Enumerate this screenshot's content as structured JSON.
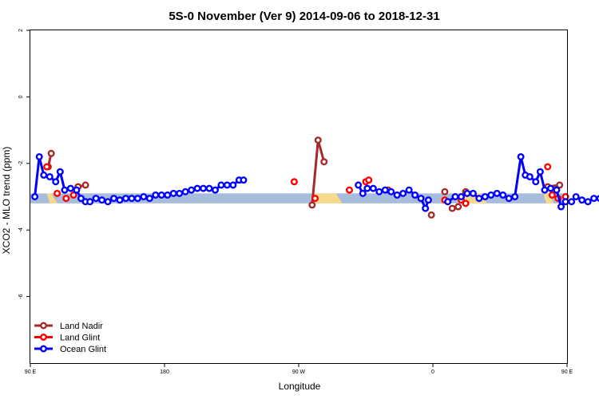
{
  "chart_data": {
    "type": "line",
    "title": "5S-0 November (Ver 9)   2014-09-06 to 2018-12-31",
    "xlabel": "Longitude",
    "ylabel": "XCO2 - MLO trend (ppm)",
    "xlim": [
      90,
      450
    ],
    "ylim": [
      -8,
      2
    ],
    "x_ticks": [
      {
        "value": 90,
        "label": "90 E"
      },
      {
        "value": 180,
        "label": "180"
      },
      {
        "value": 270,
        "label": "90 W"
      },
      {
        "value": 360,
        "label": "0"
      },
      {
        "value": 450,
        "label": "90 E"
      }
    ],
    "y_ticks": [
      {
        "value": 2,
        "label": "2"
      },
      {
        "value": 0,
        "label": "0"
      },
      {
        "value": -2,
        "label": "-2"
      },
      {
        "value": -4,
        "label": "-4"
      },
      {
        "value": -6,
        "label": "-6"
      }
    ],
    "grid": false,
    "legend_position": "bottom-left",
    "background_band": {
      "y_range": [
        -3.2,
        -2.9
      ],
      "ocean_color": "#a7bddb",
      "land_color": "#f7d98b",
      "land_segments": [
        [
          101,
          104
        ],
        [
          279,
          295
        ],
        [
          375,
          392
        ],
        [
          434,
          437
        ]
      ]
    },
    "series": [
      {
        "name": "Land Nadir",
        "color": "#a52a2a",
        "segments": [
          [
            [
              102,
              -2.1
            ],
            [
              104,
              -1.7
            ]
          ],
          [
            [
              122,
              -2.7
            ],
            [
              127,
              -2.65
            ]
          ],
          [
            [
              279,
              -3.25
            ],
            [
              283,
              -1.3
            ],
            [
              287,
              -1.95
            ]
          ],
          [
            [
              330,
              -2.8
            ]
          ],
          [
            [
              359,
              -3.55
            ]
          ],
          [
            [
              368,
              -2.85
            ]
          ],
          [
            [
              373,
              -3.35
            ]
          ],
          [
            [
              377,
              -3.3
            ]
          ],
          [
            [
              382,
              -2.85
            ]
          ],
          [
            [
              437,
              -2.7
            ],
            [
              445,
              -2.65
            ]
          ]
        ]
      },
      {
        "name": "Land Glint",
        "color": "#ff0000",
        "segments": [
          [
            [
              101,
              -2.1
            ]
          ],
          [
            [
              108,
              -2.9
            ]
          ],
          [
            [
              114,
              -3.05
            ]
          ],
          [
            [
              119,
              -2.95
            ]
          ],
          [
            [
              267,
              -2.55
            ]
          ],
          [
            [
              281,
              -3.05
            ]
          ],
          [
            [
              304,
              -2.8
            ]
          ],
          [
            [
              315,
              -2.55
            ]
          ],
          [
            [
              317,
              -2.5
            ]
          ],
          [
            [
              368,
              -3.1
            ]
          ],
          [
            [
              379,
              -3.1
            ]
          ],
          [
            [
              382,
              -3.2
            ]
          ],
          [
            [
              437,
              -2.1
            ]
          ],
          [
            [
              440,
              -2.95
            ]
          ],
          [
            [
              444,
              -3.05
            ]
          ],
          [
            [
              449,
              -3.0
            ]
          ]
        ]
      },
      {
        "name": "Ocean Glint",
        "color": "#0000ff",
        "segments": [
          [
            [
              93,
              -3.0
            ],
            [
              96,
              -1.8
            ],
            [
              99,
              -2.35
            ],
            [
              103,
              -2.4
            ],
            [
              107,
              -2.55
            ],
            [
              110,
              -2.25
            ],
            [
              113,
              -2.8
            ],
            [
              117,
              -2.75
            ],
            [
              121,
              -2.8
            ],
            [
              124,
              -3.05
            ],
            [
              127,
              -3.15
            ],
            [
              130,
              -3.15
            ],
            [
              134,
              -3.05
            ],
            [
              138,
              -3.1
            ],
            [
              142,
              -3.15
            ],
            [
              146,
              -3.05
            ],
            [
              150,
              -3.1
            ],
            [
              154,
              -3.05
            ],
            [
              158,
              -3.05
            ],
            [
              162,
              -3.05
            ],
            [
              166,
              -3.0
            ],
            [
              170,
              -3.05
            ],
            [
              174,
              -2.95
            ],
            [
              178,
              -2.95
            ],
            [
              182,
              -2.95
            ],
            [
              186,
              -2.9
            ],
            [
              190,
              -2.9
            ],
            [
              194,
              -2.85
            ],
            [
              198,
              -2.8
            ],
            [
              202,
              -2.75
            ],
            [
              206,
              -2.75
            ],
            [
              210,
              -2.75
            ],
            [
              214,
              -2.8
            ],
            [
              218,
              -2.65
            ],
            [
              222,
              -2.65
            ],
            [
              226,
              -2.65
            ],
            [
              230,
              -2.5
            ],
            [
              233,
              -2.5
            ]
          ],
          [
            [
              310,
              -2.65
            ],
            [
              313,
              -2.9
            ],
            [
              316,
              -2.75
            ],
            [
              320,
              -2.75
            ],
            [
              324,
              -2.85
            ],
            [
              328,
              -2.8
            ],
            [
              332,
              -2.85
            ],
            [
              336,
              -2.95
            ],
            [
              340,
              -2.9
            ],
            [
              344,
              -2.8
            ],
            [
              348,
              -2.95
            ],
            [
              352,
              -3.05
            ],
            [
              355,
              -3.35
            ],
            [
              357,
              -3.1
            ]
          ],
          [
            [
              370,
              -3.15
            ],
            [
              375,
              -3.0
            ],
            [
              379,
              -3.0
            ],
            [
              383,
              -2.9
            ],
            [
              387,
              -2.9
            ],
            [
              391,
              -3.05
            ],
            [
              395,
              -3.0
            ],
            [
              399,
              -2.95
            ],
            [
              403,
              -2.9
            ],
            [
              407,
              -2.95
            ],
            [
              411,
              -3.05
            ],
            [
              415,
              -3.0
            ],
            [
              419,
              -1.8
            ],
            [
              422,
              -2.35
            ],
            [
              425,
              -2.4
            ],
            [
              429,
              -2.55
            ],
            [
              432,
              -2.25
            ],
            [
              435,
              -2.8
            ],
            [
              439,
              -2.75
            ],
            [
              443,
              -2.8
            ],
            [
              446,
              -3.3
            ],
            [
              449,
              -3.15
            ],
            [
              453,
              -3.15
            ],
            [
              456,
              -3.0
            ],
            [
              460,
              -3.1
            ],
            [
              464,
              -3.15
            ],
            [
              468,
              -3.05
            ],
            [
              472,
              -3.05
            ],
            [
              475,
              -3.05
            ]
          ]
        ]
      }
    ]
  }
}
